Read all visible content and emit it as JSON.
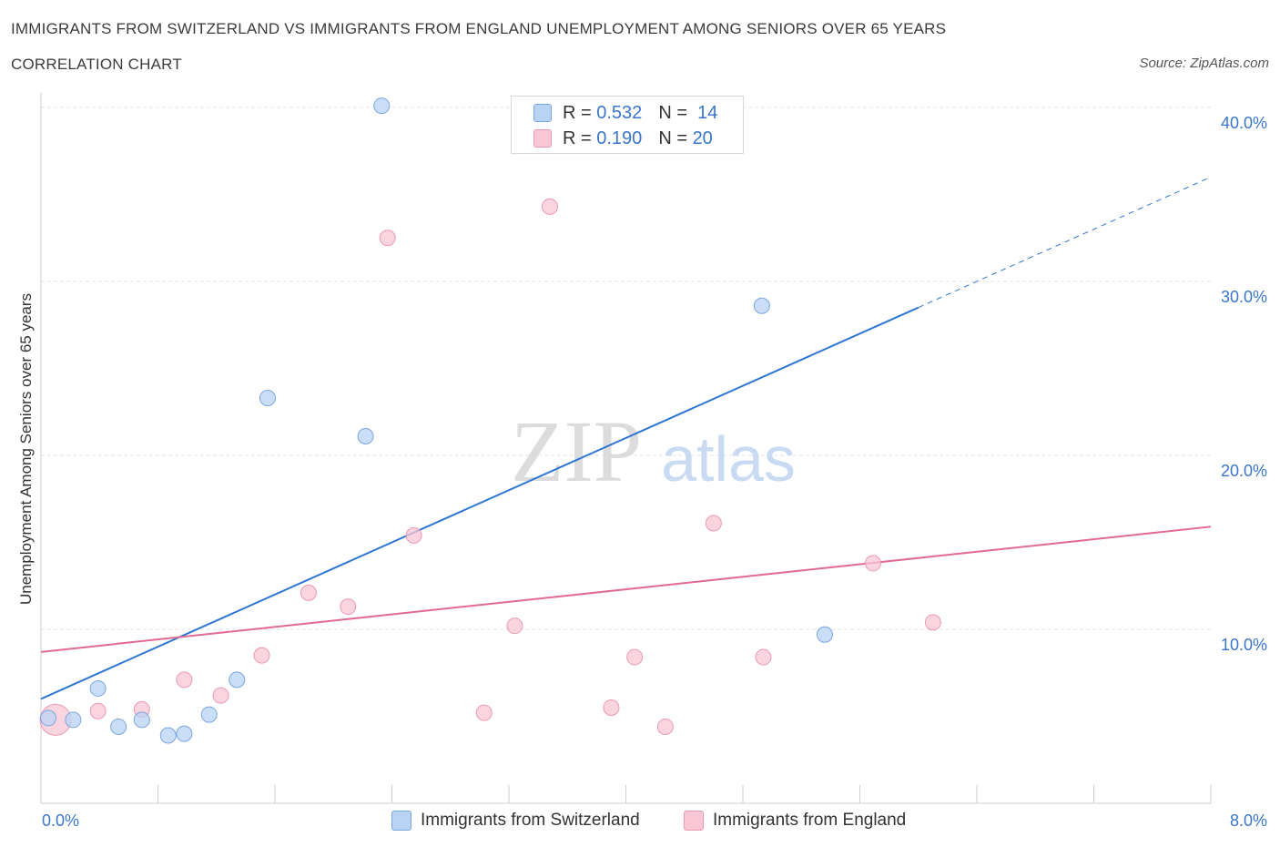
{
  "title": "IMMIGRANTS FROM SWITZERLAND VS IMMIGRANTS FROM ENGLAND UNEMPLOYMENT AMONG SENIORS OVER 65 YEARS",
  "subtitle": "CORRELATION CHART",
  "source": "Source: ZipAtlas.com",
  "watermark": {
    "zip": "ZIP",
    "atlas": "atlas"
  },
  "legend": {
    "r_label": "R =",
    "n_label": "N =",
    "swiss": {
      "r": "0.532",
      "n": "14"
    },
    "england": {
      "r": "0.190",
      "n": "20"
    }
  },
  "colors": {
    "swiss_fill": "#b9d3f5",
    "swiss_stroke": "#7aa6e0",
    "swiss_line": "#2f76d2",
    "england_fill": "#f8c6d4",
    "england_stroke": "#ec9ab3",
    "england_line": "#e06a93",
    "axis_label": "#3a76c9",
    "grid": "#e3e3e3"
  },
  "chart_data": {
    "type": "scatter",
    "title": "IMMIGRANTS FROM SWITZERLAND VS IMMIGRANTS FROM ENGLAND UNEMPLOYMENT AMONG SENIORS OVER 65 YEARS",
    "xlabel": "",
    "ylabel": "Unemployment Among Seniors over 65 years",
    "xlim": [
      0,
      8
    ],
    "ylim": [
      0,
      40
    ],
    "x_tick_labels": [
      "0.0%",
      "8.0%"
    ],
    "y_ticks": [
      10,
      20,
      30,
      40
    ],
    "y_tick_labels": [
      "10.0%",
      "20.0%",
      "30.0%",
      "40.0%"
    ],
    "grid": true,
    "legend_position": "top-center",
    "series": [
      {
        "name": "Immigrants from Switzerland",
        "points": [
          {
            "x": 0.05,
            "y": 4.9
          },
          {
            "x": 0.22,
            "y": 4.8
          },
          {
            "x": 0.39,
            "y": 6.6
          },
          {
            "x": 0.53,
            "y": 4.4
          },
          {
            "x": 0.69,
            "y": 4.8
          },
          {
            "x": 0.87,
            "y": 3.9
          },
          {
            "x": 0.98,
            "y": 4.0
          },
          {
            "x": 1.15,
            "y": 5.1
          },
          {
            "x": 1.34,
            "y": 7.1
          },
          {
            "x": 1.55,
            "y": 23.3
          },
          {
            "x": 2.22,
            "y": 21.1
          },
          {
            "x": 2.33,
            "y": 40.1
          },
          {
            "x": 4.93,
            "y": 28.6
          },
          {
            "x": 5.36,
            "y": 9.7
          }
        ],
        "trend": {
          "x0": 0,
          "y0": 6.0,
          "x1": 6.0,
          "y1": 28.5,
          "dashed_to_x": 8.0,
          "dashed_to_y": 36.0
        }
      },
      {
        "name": "Immigrants from England",
        "points": [
          {
            "x": 0.1,
            "y": 4.8
          },
          {
            "x": 0.39,
            "y": 5.3
          },
          {
            "x": 0.69,
            "y": 5.4
          },
          {
            "x": 0.98,
            "y": 7.1
          },
          {
            "x": 1.23,
            "y": 6.2
          },
          {
            "x": 1.51,
            "y": 8.5
          },
          {
            "x": 1.83,
            "y": 12.1
          },
          {
            "x": 2.1,
            "y": 11.3
          },
          {
            "x": 2.37,
            "y": 32.5
          },
          {
            "x": 2.55,
            "y": 15.4
          },
          {
            "x": 3.03,
            "y": 5.2
          },
          {
            "x": 3.24,
            "y": 10.2
          },
          {
            "x": 3.48,
            "y": 34.3
          },
          {
            "x": 3.9,
            "y": 5.5
          },
          {
            "x": 4.06,
            "y": 8.4
          },
          {
            "x": 4.27,
            "y": 4.4
          },
          {
            "x": 4.6,
            "y": 16.1
          },
          {
            "x": 4.94,
            "y": 8.4
          },
          {
            "x": 5.69,
            "y": 13.8
          },
          {
            "x": 6.1,
            "y": 10.4
          }
        ],
        "trend": {
          "x0": 0,
          "y0": 8.7,
          "x1": 8.0,
          "y1": 15.9
        }
      }
    ]
  }
}
